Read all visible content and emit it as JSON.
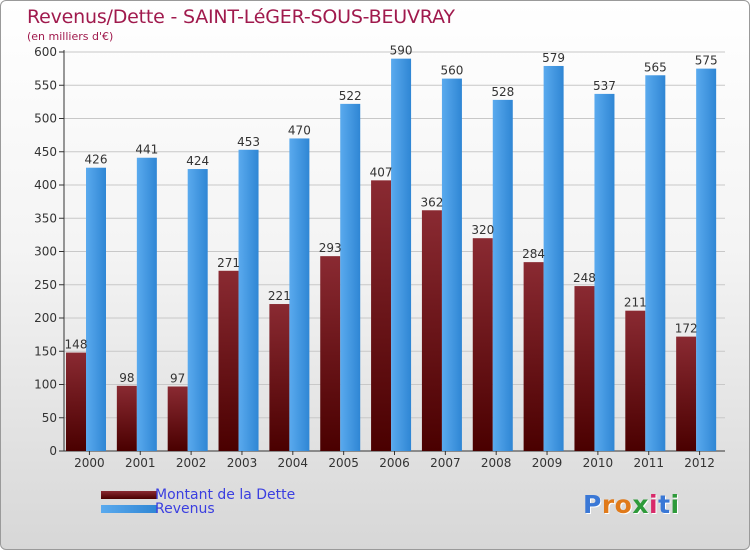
{
  "title": "Revenus/Dette - SAINT-LéGER-SOUS-BEUVRAY",
  "subtitle": "(en milliers d'€)",
  "colors": {
    "title": "#a01a4d",
    "dette_top": "#8a2a32",
    "dette_bottom": "#4a0000",
    "revenus_light": "#5aaaee",
    "revenus_dark": "#2f86d4",
    "legend_text": "#3a3ee0"
  },
  "legend": [
    {
      "label": "Montant de la Dette",
      "swatch": "dette-swatch"
    },
    {
      "label": "Revenus",
      "swatch": "revenus-swatch"
    }
  ],
  "logo": {
    "letters": [
      "P",
      "r",
      "o",
      "x",
      "i",
      "t",
      "i"
    ],
    "colors": [
      "#3a78d6",
      "#e07a1a",
      "#e07a1a",
      "#2e9a3a",
      "#d82a6a",
      "#3a78d6",
      "#2e9a3a"
    ]
  },
  "chart_data": {
    "type": "bar",
    "title": "Revenus/Dette - SAINT-LéGER-SOUS-BEUVRAY",
    "ylabel": "(en milliers d'€)",
    "xlabel": "",
    "categories": [
      "2000",
      "2001",
      "2002",
      "2003",
      "2004",
      "2005",
      "2006",
      "2007",
      "2008",
      "2009",
      "2010",
      "2011",
      "2012"
    ],
    "series": [
      {
        "name": "Montant de la Dette",
        "values": [
          148,
          98,
          97,
          271,
          221,
          293,
          407,
          362,
          320,
          284,
          248,
          211,
          172
        ]
      },
      {
        "name": "Revenus",
        "values": [
          426,
          441,
          424,
          453,
          470,
          522,
          590,
          560,
          528,
          579,
          537,
          565,
          575
        ]
      }
    ],
    "ylim": [
      0,
      600
    ],
    "yticks": [
      0,
      50,
      100,
      150,
      200,
      250,
      300,
      350,
      400,
      450,
      500,
      550,
      600
    ],
    "grid": true,
    "legend_position": "bottom-left"
  }
}
